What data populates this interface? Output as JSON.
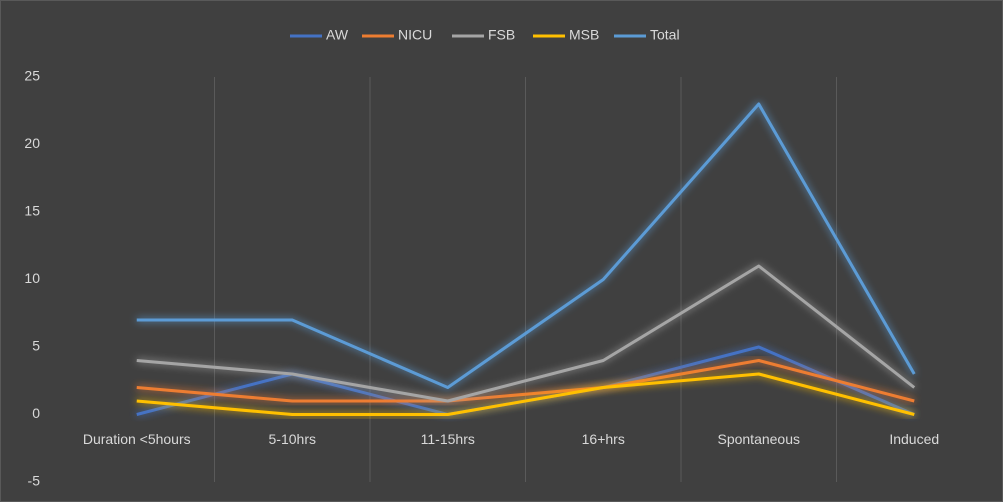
{
  "chart_data": {
    "type": "line",
    "categories": [
      "Duration <5hours",
      "5-10hrs",
      "11-15hrs",
      "16+hrs",
      "Spontaneous",
      "Induced"
    ],
    "series": [
      {
        "name": "AW",
        "color": "#4472c4",
        "values": [
          0,
          3,
          0,
          2,
          5,
          0
        ]
      },
      {
        "name": "NICU",
        "color": "#ed7d31",
        "values": [
          2,
          1,
          1,
          2,
          4,
          1
        ]
      },
      {
        "name": "FSB",
        "color": "#a5a5a5",
        "values": [
          4,
          3,
          1,
          4,
          11,
          2
        ]
      },
      {
        "name": "MSB",
        "color": "#ffc000",
        "values": [
          1,
          0,
          0,
          2,
          3,
          0
        ]
      },
      {
        "name": "Total",
        "color": "#5b9bd5",
        "values": [
          7,
          7,
          2,
          10,
          23,
          3
        ]
      }
    ],
    "ylim": [
      -5,
      25
    ],
    "yticks": [
      -5,
      0,
      5,
      10,
      15,
      20,
      25
    ],
    "grid": true,
    "legend": "top"
  }
}
